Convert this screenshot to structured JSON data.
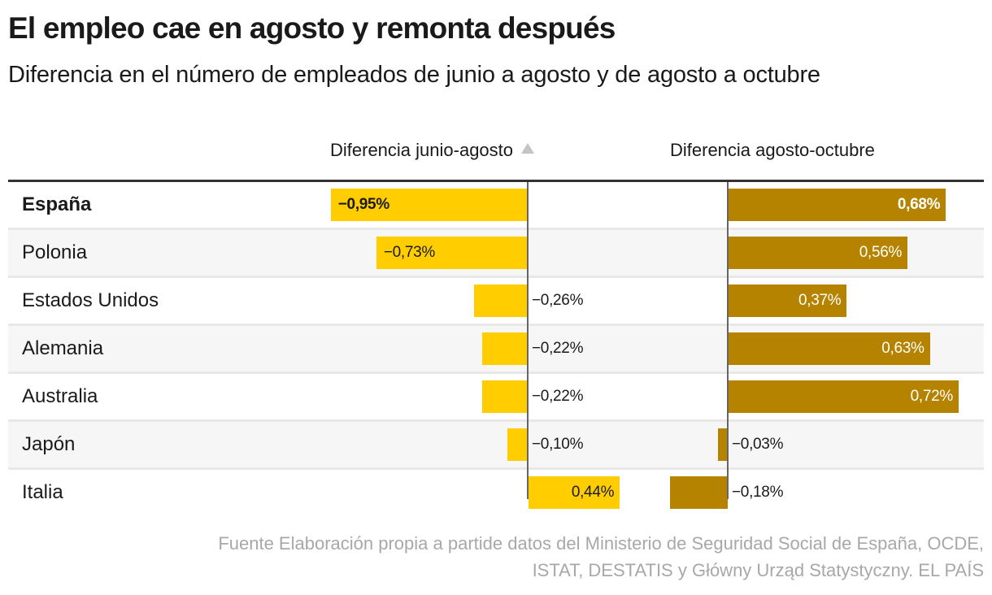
{
  "title": "El empleo cae en agosto y remonta después",
  "subtitle": "Diferencia en el número de empleados de junio a agosto y de agosto a octubre",
  "source": {
    "line1": "Fuente Elaboración propia a partide datos del Ministerio de Seguridad Social de España, OCDE,",
    "line2": "ISTAT, DESTATIS y Główny Urząd Statystyczny. EL PAÍS"
  },
  "colors": {
    "junio_agosto": "#ffcd00",
    "agosto_octubre": "#b58300",
    "row_shade": "#f6f6f6",
    "axis": "#666666"
  },
  "chart_data": {
    "type": "bar",
    "orientation": "horizontal",
    "title": "El empleo cae en agosto y remonta después",
    "subtitle": "Diferencia en el número de empleados de junio a agosto y de agosto a octubre",
    "unit": "%",
    "sorted_by": "Diferencia junio-agosto",
    "sort_icon": "sort-ascending-triangle-icon",
    "highlighted_category": "España",
    "categories": [
      "España",
      "Polonia",
      "Estados Unidos",
      "Alemania",
      "Australia",
      "Japón",
      "Italia"
    ],
    "series": [
      {
        "name": "Diferencia junio-agosto",
        "values": [
          -0.95,
          -0.73,
          -0.26,
          -0.22,
          -0.22,
          -0.1,
          0.44
        ],
        "labels": [
          "−0,95%",
          "−0,73%",
          "−0,26%",
          "−0,22%",
          "−0,22%",
          "−0,10%",
          "0,44%"
        ]
      },
      {
        "name": "Diferencia agosto-octubre",
        "values": [
          0.68,
          0.56,
          0.37,
          0.63,
          0.72,
          -0.03,
          -0.18
        ],
        "labels": [
          "0,68%",
          "0,56%",
          "0,37%",
          "0,63%",
          "0,72%",
          "−0,03%",
          "−0,18%"
        ]
      }
    ]
  }
}
